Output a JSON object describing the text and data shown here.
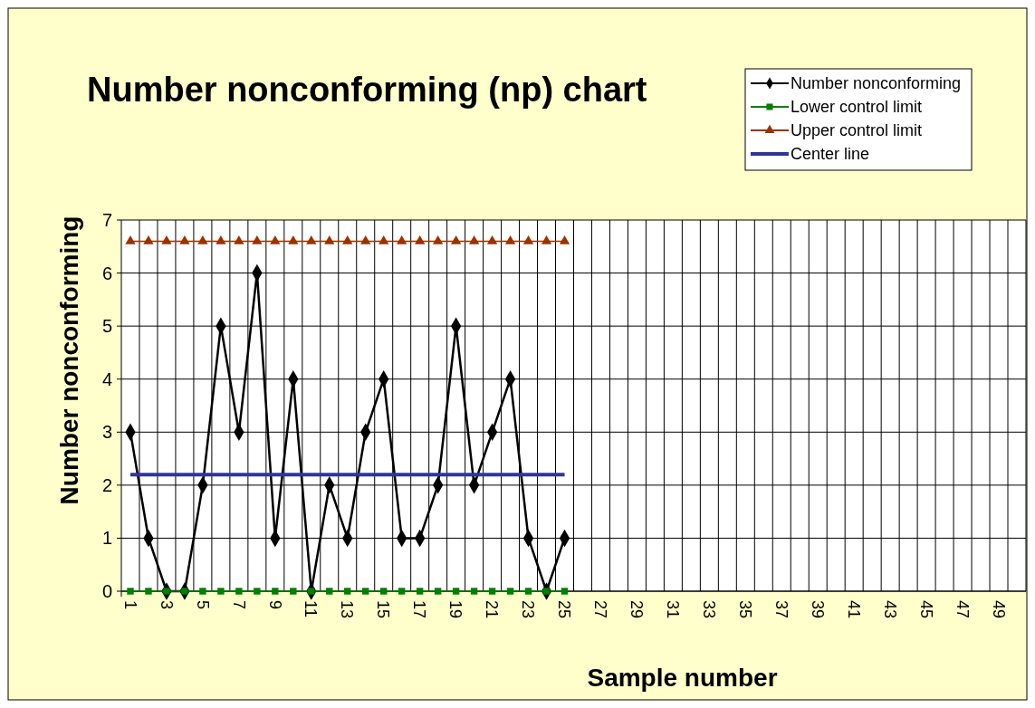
{
  "chart_data": {
    "type": "line",
    "title": "Number nonconforming (np) chart",
    "xlabel": "Sample number",
    "ylabel": "Number nonconforming",
    "categories": [
      "1",
      null,
      "3",
      null,
      "5",
      null,
      "7",
      null,
      "9",
      null,
      "11",
      null,
      "13",
      null,
      "15",
      null,
      "17",
      null,
      "19",
      null,
      "21",
      null,
      "23",
      null,
      "25",
      null,
      "27",
      null,
      "29",
      null,
      "31",
      null,
      "33",
      null,
      "35",
      null,
      "37",
      null,
      "39",
      null,
      "41",
      null,
      "43",
      null,
      "45",
      null,
      "47",
      null,
      "49",
      null
    ],
    "series": [
      {
        "name": "Number nonconforming",
        "color": "#000000",
        "marker": "diamond",
        "values": [
          3,
          1,
          0,
          0,
          2,
          5,
          3,
          6,
          1,
          4,
          0,
          2,
          1,
          3,
          4,
          1,
          1,
          2,
          5,
          2,
          3,
          4,
          1,
          0,
          1,
          null,
          null,
          null,
          null,
          null,
          null,
          null,
          null,
          null,
          null,
          null,
          null,
          null,
          null,
          null,
          null,
          null,
          null,
          null,
          null,
          null,
          null,
          null,
          null,
          null
        ]
      },
      {
        "name": "Lower control limit",
        "color": "#008000",
        "marker": "square",
        "values": [
          0,
          0,
          0,
          0,
          0,
          0,
          0,
          0,
          0,
          0,
          0,
          0,
          0,
          0,
          0,
          0,
          0,
          0,
          0,
          0,
          0,
          0,
          0,
          0,
          0,
          null,
          null,
          null,
          null,
          null,
          null,
          null,
          null,
          null,
          null,
          null,
          null,
          null,
          null,
          null,
          null,
          null,
          null,
          null,
          null,
          null,
          null,
          null,
          null,
          null
        ]
      },
      {
        "name": "Upper control limit",
        "color": "#993300",
        "marker": "triangle",
        "values": [
          6.6,
          6.6,
          6.6,
          6.6,
          6.6,
          6.6,
          6.6,
          6.6,
          6.6,
          6.6,
          6.6,
          6.6,
          6.6,
          6.6,
          6.6,
          6.6,
          6.6,
          6.6,
          6.6,
          6.6,
          6.6,
          6.6,
          6.6,
          6.6,
          6.6,
          null,
          null,
          null,
          null,
          null,
          null,
          null,
          null,
          null,
          null,
          null,
          null,
          null,
          null,
          null,
          null,
          null,
          null,
          null,
          null,
          null,
          null,
          null,
          null,
          null
        ]
      },
      {
        "name": "Center line",
        "color": "#333399",
        "marker": "none",
        "values": [
          2.2,
          2.2,
          2.2,
          2.2,
          2.2,
          2.2,
          2.2,
          2.2,
          2.2,
          2.2,
          2.2,
          2.2,
          2.2,
          2.2,
          2.2,
          2.2,
          2.2,
          2.2,
          2.2,
          2.2,
          2.2,
          2.2,
          2.2,
          2.2,
          2.2,
          null,
          null,
          null,
          null,
          null,
          null,
          null,
          null,
          null,
          null,
          null,
          null,
          null,
          null,
          null,
          null,
          null,
          null,
          null,
          null,
          null,
          null,
          null,
          null,
          null
        ]
      }
    ],
    "ylim": [
      0,
      7
    ],
    "yticks": [
      0,
      1,
      2,
      3,
      4,
      5,
      6,
      7
    ],
    "grid": true,
    "legend": "top right"
  }
}
